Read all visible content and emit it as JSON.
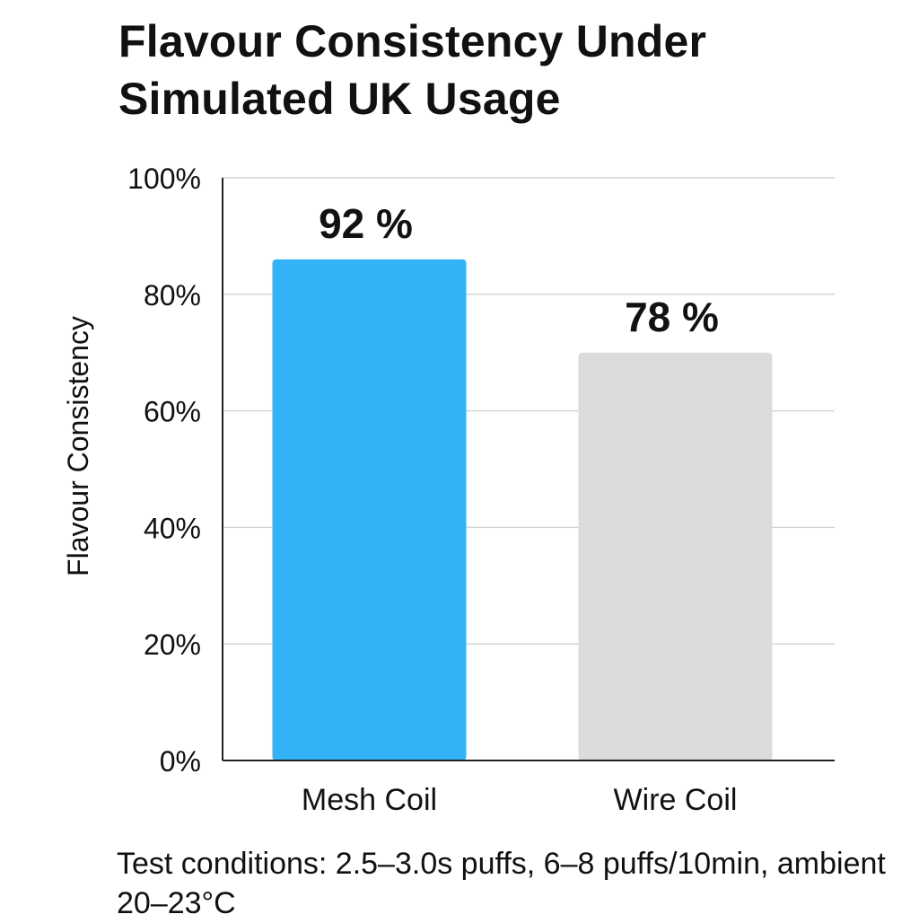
{
  "chart_data": {
    "type": "bar",
    "title": "Flavour Consistency Under Simulated UK Usage",
    "ylabel": "Flavour Consistency",
    "xlabel": "",
    "categories": [
      "Mesh Coil",
      "Wire Coil"
    ],
    "values": [
      92,
      78
    ],
    "data_labels": [
      "92 %",
      "78 %"
    ],
    "ylim": [
      0,
      100
    ],
    "yticks": [
      0,
      20,
      40,
      60,
      80,
      100
    ],
    "ytick_labels": [
      "0%",
      "20%",
      "40%",
      "60%",
      "80%",
      "100%"
    ],
    "grid": true,
    "legend": "none",
    "colors": [
      "#33b3f7",
      "#dcdcdc"
    ]
  },
  "footnote": "Test conditions: 2.5–3.0s puffs, 6–8 puffs/10min, ambient 20–23°C"
}
